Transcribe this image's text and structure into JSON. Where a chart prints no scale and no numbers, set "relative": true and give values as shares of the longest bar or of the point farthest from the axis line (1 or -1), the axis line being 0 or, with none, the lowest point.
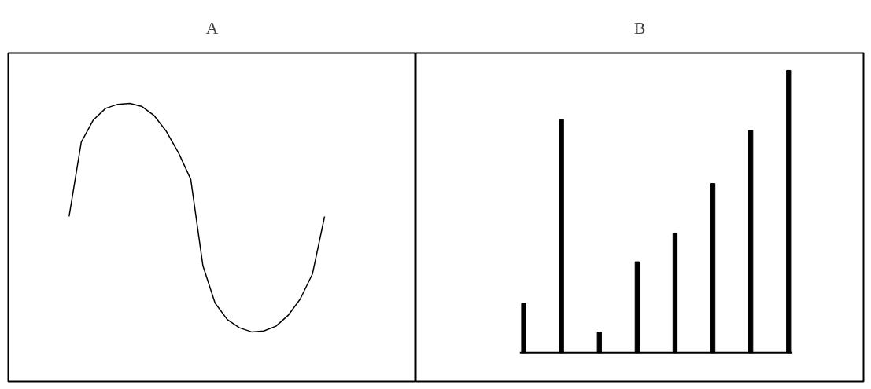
{
  "chart_data": [
    {
      "type": "line",
      "title": "A",
      "relative": true,
      "color": "#000000",
      "categories": [
        null,
        null,
        null,
        null,
        null,
        null,
        null,
        null,
        null,
        null,
        null,
        null,
        null,
        null,
        null,
        null,
        null,
        null,
        null,
        null,
        null,
        null
      ],
      "values": [
        0.505,
        0.83,
        0.928,
        0.978,
        0.996,
        1.0,
        0.986,
        0.946,
        0.877,
        0.783,
        0.668,
        0.289,
        0.126,
        0.054,
        0.018,
        0.0,
        0.004,
        0.025,
        0.072,
        0.144,
        0.253,
        0.505
      ]
    },
    {
      "type": "bar",
      "title": "B",
      "relative": true,
      "color": "#000000",
      "categories": [
        null,
        null,
        null,
        null,
        null,
        null,
        null,
        null
      ],
      "values": [
        0.175,
        0.825,
        0.073,
        0.322,
        0.424,
        0.599,
        0.787,
        1.0
      ]
    }
  ]
}
